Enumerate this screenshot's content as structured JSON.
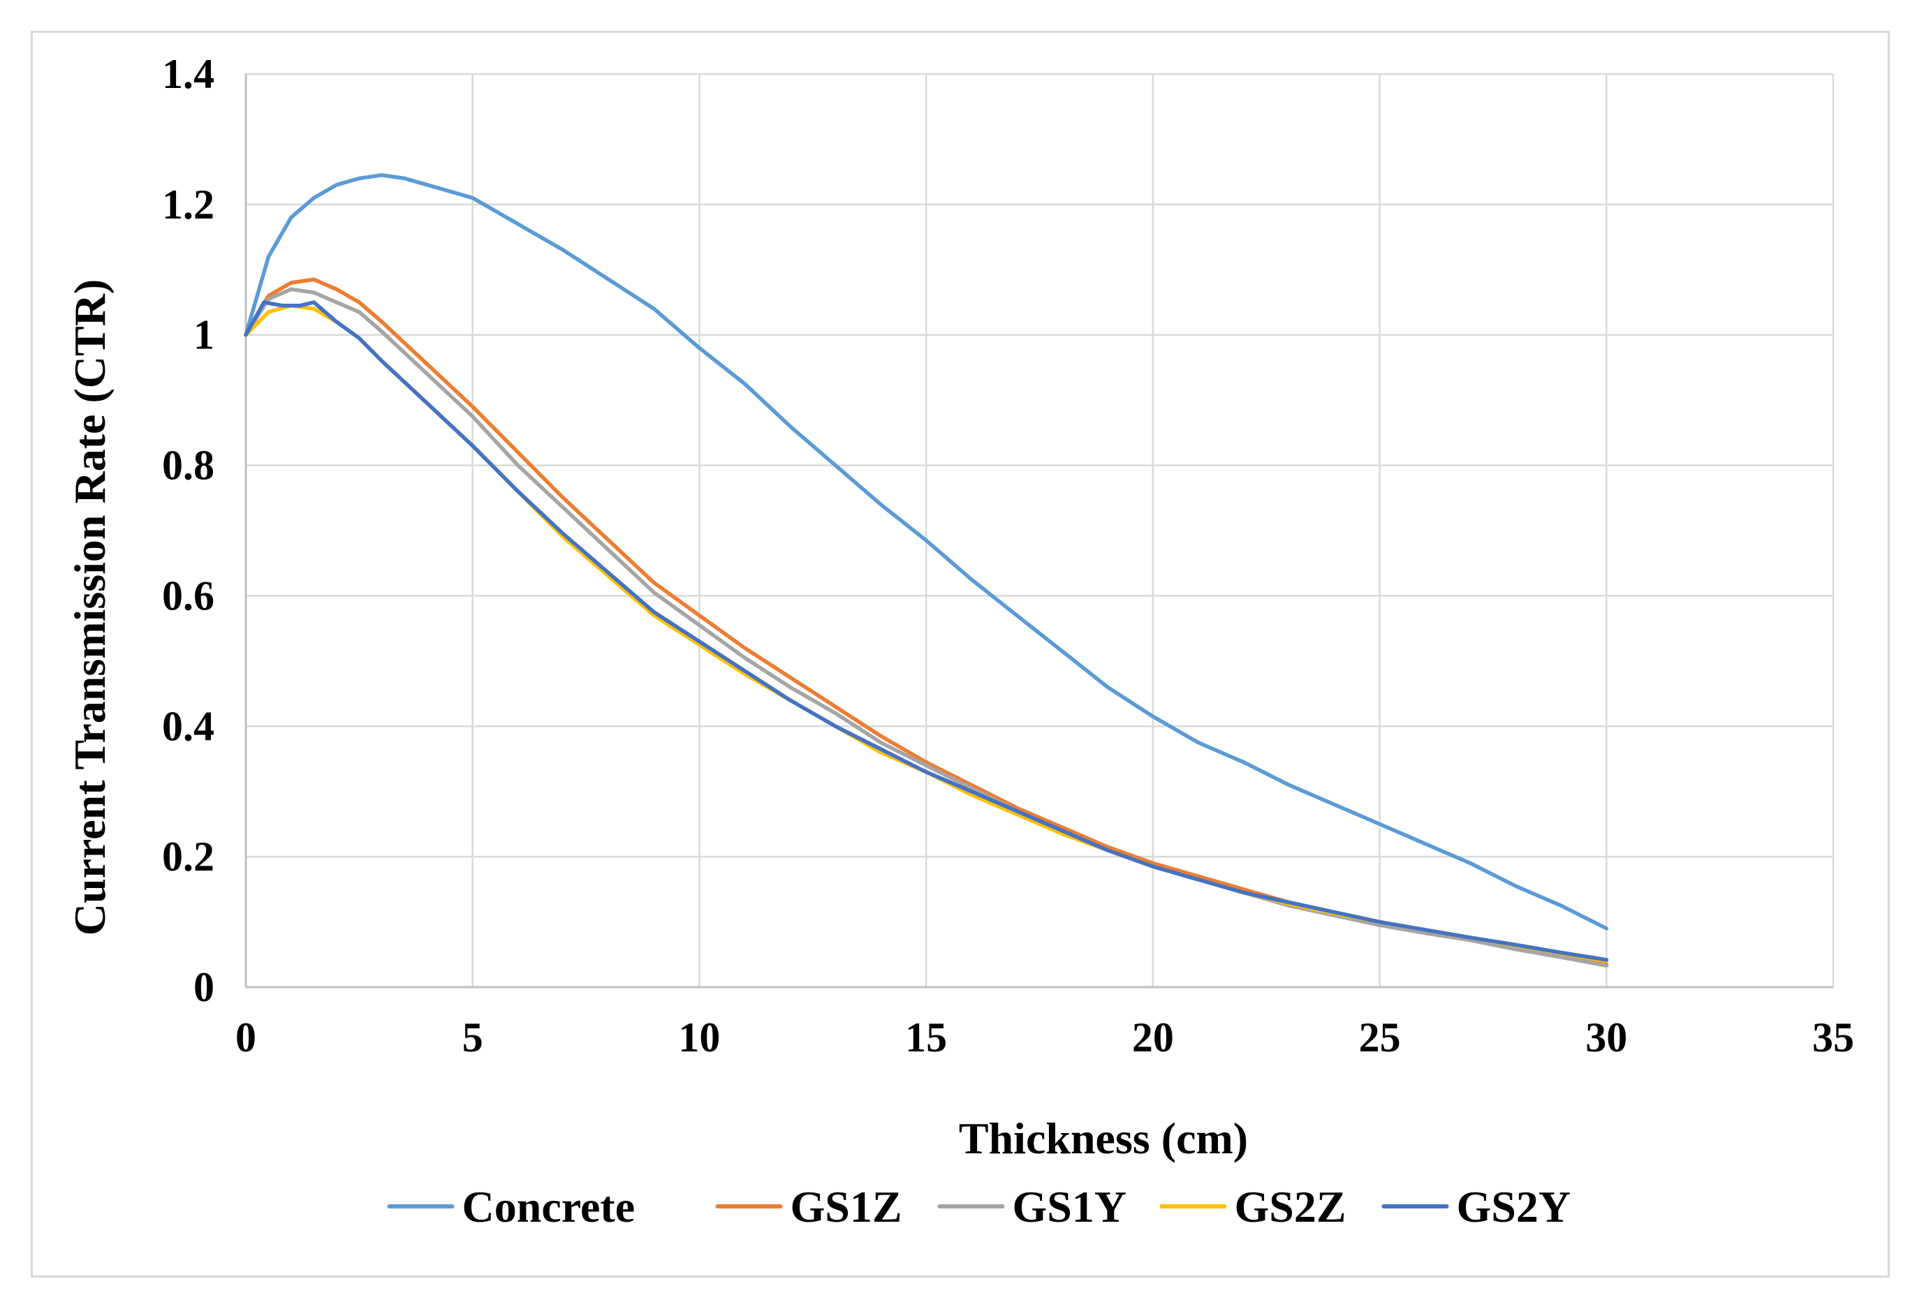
{
  "chart_data": {
    "type": "line",
    "title": "",
    "xlabel": "Thickness (cm)",
    "ylabel": "Current Transmission Rate (CTR)",
    "xlim": [
      0,
      35
    ],
    "ylim": [
      0,
      1.4
    ],
    "x_ticks": [
      0,
      5,
      10,
      15,
      20,
      25,
      30,
      35
    ],
    "y_ticks": [
      0,
      0.2,
      0.4,
      0.6,
      0.8,
      1,
      1.2,
      1.4
    ],
    "x_tick_labels": [
      "0",
      "5",
      "10",
      "15",
      "20",
      "25",
      "30",
      "35"
    ],
    "y_tick_labels": [
      "0",
      "0.2",
      "0.4",
      "0.6",
      "0.8",
      "1",
      "1.2",
      "1.4"
    ],
    "grid": true,
    "legend_position": "bottom",
    "series": [
      {
        "name": "Concrete",
        "color": "#5b9bd5",
        "x": [
          0,
          0.5,
          1,
          1.5,
          2,
          2.5,
          3,
          3.5,
          4,
          5,
          6,
          7,
          8,
          9,
          10,
          11,
          12,
          13,
          14,
          15,
          16,
          17,
          18,
          19,
          20,
          21,
          22,
          23,
          24,
          25,
          26,
          27,
          28,
          29,
          30
        ],
        "values": [
          1.0,
          1.12,
          1.18,
          1.21,
          1.23,
          1.24,
          1.245,
          1.24,
          1.23,
          1.21,
          1.17,
          1.13,
          1.085,
          1.04,
          0.98,
          0.925,
          0.86,
          0.8,
          0.74,
          0.685,
          0.625,
          0.57,
          0.515,
          0.46,
          0.415,
          0.375,
          0.345,
          0.31,
          0.28,
          0.25,
          0.22,
          0.19,
          0.155,
          0.125,
          0.09
        ]
      },
      {
        "name": "GS1Z",
        "color": "#ed7d31",
        "x": [
          0,
          0.5,
          1,
          1.5,
          2,
          2.5,
          3,
          4,
          5,
          6,
          7,
          8,
          9,
          10,
          11,
          12,
          13,
          14,
          15,
          16,
          17,
          18,
          19,
          20,
          21,
          22,
          23,
          24,
          25,
          26,
          27,
          28,
          29,
          30
        ],
        "values": [
          1.0,
          1.06,
          1.08,
          1.085,
          1.07,
          1.05,
          1.02,
          0.955,
          0.89,
          0.82,
          0.75,
          0.685,
          0.62,
          0.57,
          0.52,
          0.475,
          0.43,
          0.385,
          0.345,
          0.31,
          0.275,
          0.245,
          0.215,
          0.19,
          0.17,
          0.15,
          0.13,
          0.115,
          0.1,
          0.085,
          0.075,
          0.06,
          0.048,
          0.035
        ]
      },
      {
        "name": "GS1Y",
        "color": "#a5a5a5",
        "x": [
          0,
          0.5,
          1,
          1.5,
          2,
          2.5,
          3,
          4,
          5,
          6,
          7,
          8,
          9,
          10,
          11,
          12,
          13,
          14,
          15,
          16,
          17,
          18,
          19,
          20,
          21,
          22,
          23,
          24,
          25,
          26,
          27,
          28,
          29,
          30
        ],
        "values": [
          1.0,
          1.055,
          1.07,
          1.065,
          1.05,
          1.035,
          1.005,
          0.94,
          0.875,
          0.8,
          0.735,
          0.67,
          0.605,
          0.555,
          0.505,
          0.46,
          0.42,
          0.375,
          0.34,
          0.305,
          0.27,
          0.24,
          0.21,
          0.185,
          0.165,
          0.145,
          0.125,
          0.11,
          0.095,
          0.083,
          0.072,
          0.058,
          0.046,
          0.033
        ]
      },
      {
        "name": "GS2Z",
        "color": "#ffc000",
        "x": [
          0,
          0.5,
          1,
          1.5,
          2,
          2.5,
          3,
          4,
          5,
          6,
          7,
          8,
          9,
          10,
          11,
          12,
          13,
          14,
          15,
          16,
          17,
          18,
          19,
          20,
          21,
          22,
          23,
          24,
          25,
          26,
          27,
          28,
          29,
          30
        ],
        "values": [
          1.0,
          1.035,
          1.045,
          1.04,
          1.02,
          0.995,
          0.96,
          0.895,
          0.83,
          0.76,
          0.69,
          0.63,
          0.57,
          0.525,
          0.48,
          0.44,
          0.4,
          0.36,
          0.33,
          0.295,
          0.265,
          0.235,
          0.21,
          0.185,
          0.165,
          0.145,
          0.128,
          0.113,
          0.1,
          0.088,
          0.076,
          0.064,
          0.052,
          0.04
        ]
      },
      {
        "name": "GS2Y",
        "color": "#4472c4",
        "x": [
          0,
          0.4,
          0.8,
          1.2,
          1.5,
          2,
          2.5,
          3,
          4,
          5,
          6,
          7,
          8,
          9,
          10,
          11,
          12,
          13,
          14,
          15,
          16,
          17,
          18,
          19,
          20,
          21,
          22,
          23,
          24,
          25,
          26,
          27,
          28,
          29,
          30
        ],
        "values": [
          1.0,
          1.05,
          1.045,
          1.045,
          1.05,
          1.02,
          0.995,
          0.96,
          0.895,
          0.83,
          0.76,
          0.695,
          0.635,
          0.575,
          0.53,
          0.485,
          0.44,
          0.4,
          0.365,
          0.33,
          0.3,
          0.27,
          0.24,
          0.21,
          0.185,
          0.165,
          0.145,
          0.13,
          0.115,
          0.1,
          0.088,
          0.076,
          0.065,
          0.053,
          0.042
        ]
      }
    ]
  }
}
